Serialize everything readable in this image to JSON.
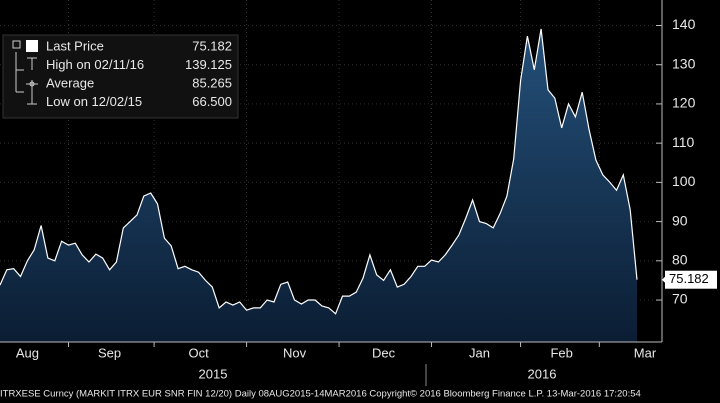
{
  "chart_data": {
    "type": "area",
    "series": [
      {
        "name": "Last Price",
        "color": "#ffffff",
        "values": [
          73.8,
          77.7,
          78,
          76,
          80,
          82.8,
          89,
          80.7,
          80,
          85,
          84,
          84.5,
          81.5,
          79.7,
          81.7,
          80.7,
          77.7,
          79.7,
          88.4,
          90,
          91.7,
          96.5,
          97.3,
          94.5,
          85.8,
          83.8,
          78,
          78.6,
          77.7,
          77.1,
          75,
          73.3,
          68,
          69.5,
          68.7,
          69.5,
          67.4,
          68,
          68,
          70,
          69.5,
          74,
          74.6,
          70,
          69,
          70,
          70,
          68.5,
          68,
          66.5,
          71,
          71,
          72,
          75.6,
          81.5,
          76.4,
          75,
          77.7,
          73.3,
          74,
          76,
          78.6,
          78.6,
          80.2,
          79.7,
          81.5,
          84,
          86.6,
          90.9,
          95.5,
          90,
          89.5,
          88.4,
          92,
          96.5,
          106,
          126,
          137.3,
          128.7,
          139.125,
          123.6,
          121.5,
          113.9,
          120,
          116.7,
          123,
          113.4,
          105.7,
          101.9,
          100.1,
          98,
          101.9,
          93,
          75.182
        ]
      }
    ],
    "categories": [
      null,
      null,
      null,
      null,
      "Aug",
      null,
      null,
      null,
      null,
      null,
      null,
      null,
      null,
      null,
      null,
      null,
      "Sep",
      null,
      null,
      null,
      null,
      null,
      null,
      null,
      null,
      null,
      null,
      null,
      null,
      "Oct",
      null,
      null,
      null,
      null,
      null,
      null,
      null,
      null,
      null,
      null,
      null,
      null,
      null,
      "Nov",
      null,
      null,
      null,
      null,
      null,
      null,
      null,
      null,
      null,
      null,
      null,
      null,
      "Dec",
      null,
      null,
      null,
      null,
      null,
      null,
      null,
      null,
      null,
      null,
      null,
      null,
      null,
      "Jan",
      null,
      null,
      null,
      null,
      null,
      null,
      null,
      null,
      null,
      null,
      null,
      "Feb",
      null,
      null,
      null,
      null,
      null,
      null,
      null,
      null,
      null,
      null,
      "Mar"
    ],
    "years": [
      "2015",
      "2016"
    ],
    "ylim": [
      59.3,
      146.5
    ],
    "yticks": [
      70,
      80,
      90,
      100,
      110,
      120,
      130,
      140
    ],
    "legend": [
      {
        "name": "Last Price",
        "value": 75.182
      },
      {
        "name": "High on 02/11/16",
        "value": 139.125
      },
      {
        "name": "Average",
        "value": 85.265
      },
      {
        "name": "Low on 12/02/15",
        "value": {
          "value": 66.5,
          "label": "66.500"
        }
      }
    ],
    "footer": "ITRXESE Curncy (MARKIT ITRX EUR SNR FIN 12/20)  Daily 08AUG2015-14MAR2016 Copyright© 2016 Bloomberg Finance L.P. 13-Mar-2016 17:20:54"
  }
}
